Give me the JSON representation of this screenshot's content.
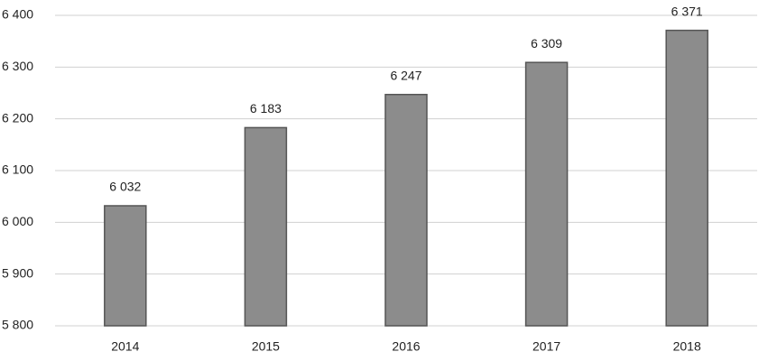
{
  "chart_data": {
    "type": "bar",
    "categories": [
      "2014",
      "2015",
      "2016",
      "2017",
      "2018"
    ],
    "values": [
      6032,
      6183,
      6247,
      6309,
      6371
    ],
    "value_labels": [
      "6 032",
      "6 183",
      "6 247",
      "6 309",
      "6 371"
    ],
    "color": "#8c8c8c",
    "ylim": [
      5800,
      6400
    ],
    "yticks": [
      {
        "value": 5800,
        "label": "5 800"
      },
      {
        "value": 5900,
        "label": "5 900"
      },
      {
        "value": 6000,
        "label": "6 000"
      },
      {
        "value": 6100,
        "label": "6 100"
      },
      {
        "value": 6200,
        "label": "6 200"
      },
      {
        "value": 6300,
        "label": "6 300"
      },
      {
        "value": 6400,
        "label": "6 400"
      }
    ],
    "grid": true
  }
}
